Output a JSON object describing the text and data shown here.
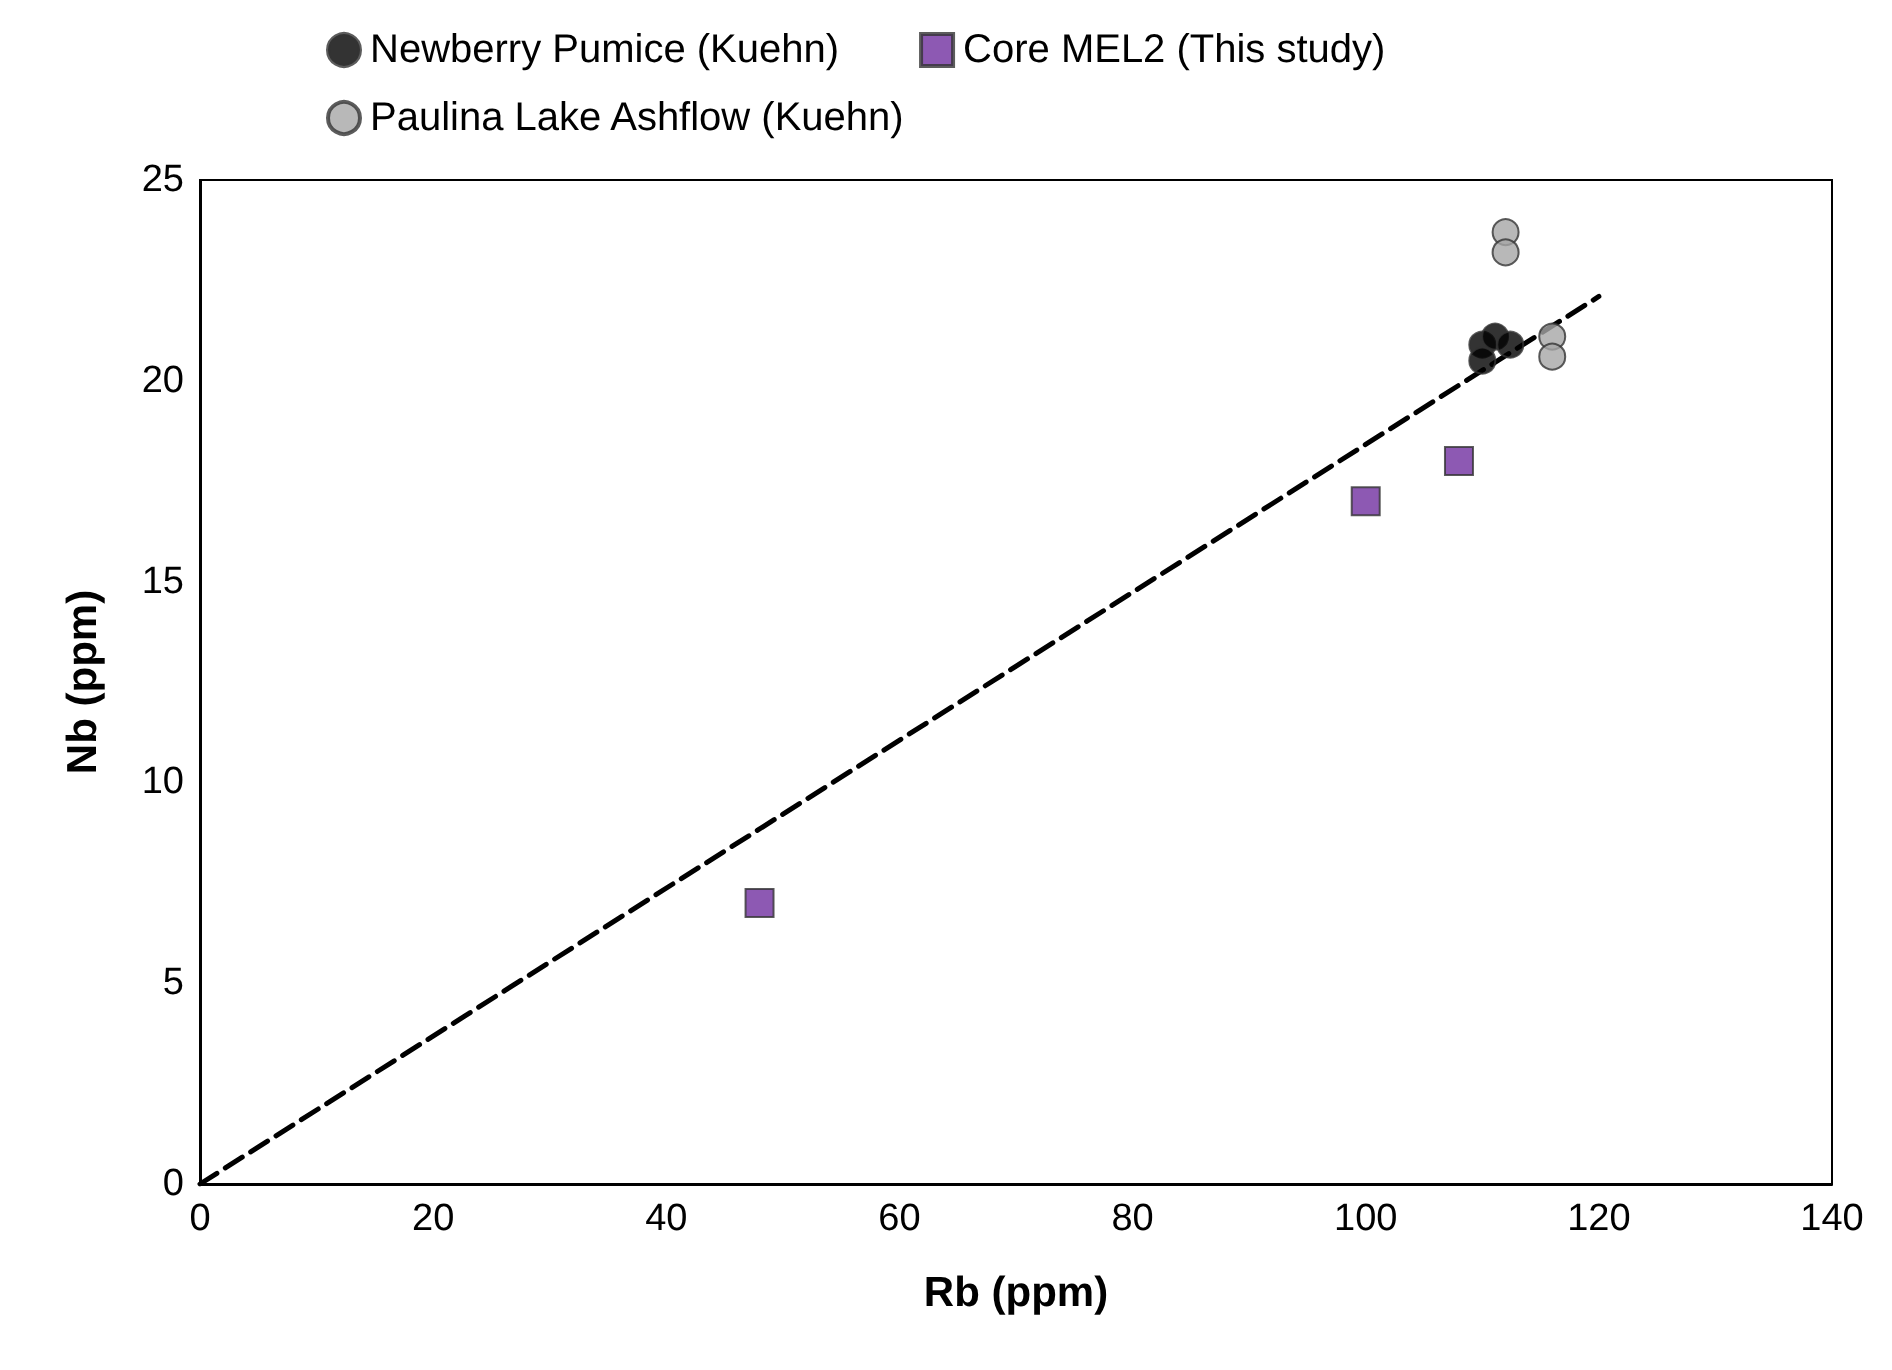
{
  "chart_data": {
    "type": "scatter",
    "xlabel": "Rb (ppm)",
    "ylabel": "Nb (ppm)",
    "xlim": [
      0,
      140
    ],
    "xticks": [
      0,
      20,
      40,
      60,
      80,
      100,
      120,
      140
    ],
    "ylim": [
      0,
      25
    ],
    "yticks": [
      0,
      5,
      10,
      15,
      20,
      25
    ],
    "grid": false,
    "legend": "top",
    "series": [
      {
        "name": "Newberry Pumice (Kuehn)",
        "color": "#000000",
        "marker": "circle",
        "x": [
          110,
          110,
          111.1,
          112.4
        ],
        "values": [
          20.9,
          20.5,
          21.1,
          20.9
        ]
      },
      {
        "name": "Core MEL2 (This study)",
        "color": "#7030a0",
        "marker": "square",
        "x": [
          48,
          100,
          108
        ],
        "values": [
          7,
          17,
          18
        ]
      },
      {
        "name": "Paulina Lake Ashflow (Kuehn)",
        "color": "#a6a6a6",
        "marker": "circle",
        "x": [
          112,
          112,
          116,
          116
        ],
        "values": [
          23.7,
          23.2,
          21.1,
          20.6
        ]
      },
      {
        "type": "line",
        "color": "#000000",
        "marker": "none",
        "line_style": "dashed",
        "x": [
          0,
          120
        ],
        "values": [
          0,
          22.1
        ]
      }
    ]
  }
}
